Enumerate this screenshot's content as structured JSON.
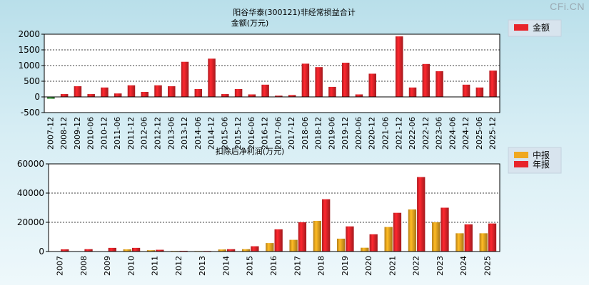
{
  "watermark": "CFi.CN",
  "chart_data": [
    {
      "type": "bar",
      "title": "阳谷华泰(300121)非经常损益合计",
      "subtitle": "金额(万元)",
      "categories": [
        "2007-12",
        "2008-12",
        "2009-12",
        "2010-06",
        "2010-12",
        "2011-06",
        "2011-12",
        "2012-06",
        "2012-12",
        "2013-06",
        "2013-12",
        "2014-06",
        "2014-12",
        "2015-06",
        "2015-12",
        "2016-06",
        "2016-12",
        "2017-06",
        "2017-12",
        "2018-06",
        "2018-12",
        "2019-06",
        "2019-12",
        "2020-06",
        "2020-12",
        "2021-06",
        "2021-12",
        "2022-06",
        "2022-12",
        "2023-06",
        "2024-06",
        "2024-12",
        "2025-06",
        "2025-12"
      ],
      "series": [
        {
          "name": "金额",
          "color": "#e8242a",
          "negative_color": "#3f9a3f",
          "values": [
            -60,
            90,
            340,
            90,
            300,
            110,
            370,
            160,
            370,
            340,
            1120,
            250,
            1220,
            90,
            250,
            80,
            390,
            40,
            60,
            1060,
            950,
            320,
            1090,
            80,
            740,
            0,
            1930,
            300,
            1050,
            820,
            0,
            390,
            300,
            840
          ]
        }
      ],
      "ylim": [
        -500,
        2000
      ],
      "yticks": [
        "2000",
        "1500",
        "1000",
        "500",
        "0",
        "-500"
      ],
      "legend": [
        "金额"
      ],
      "legend_position": "right"
    },
    {
      "type": "bar",
      "title": "扣除后净利润(万元)",
      "categories": [
        "2007",
        "2008",
        "2009",
        "2010",
        "2011",
        "2012",
        "2013",
        "2014",
        "2015",
        "2016",
        "2017",
        "2018",
        "2019",
        "2020",
        "2021",
        "2022",
        "2023",
        "2024",
        "2025"
      ],
      "series": [
        {
          "name": "中报",
          "color": "#f0a820",
          "values": [
            0,
            0,
            0,
            1500,
            900,
            400,
            350,
            1400,
            1600,
            5800,
            8000,
            21000,
            8800,
            2600,
            16800,
            28800,
            20000,
            12500,
            12500
          ]
        },
        {
          "name": "年报",
          "color": "#e8242a",
          "values": [
            1500,
            1600,
            2500,
            2500,
            1200,
            500,
            400,
            1600,
            3600,
            15200,
            20000,
            35800,
            17200,
            11800,
            26500,
            51000,
            30000,
            18600,
            19200
          ]
        }
      ],
      "ylim": [
        0,
        60000
      ],
      "yticks": [
        "60000",
        "40000",
        "20000",
        "0"
      ],
      "legend": [
        "中报",
        "年报"
      ],
      "legend_position": "right"
    }
  ]
}
